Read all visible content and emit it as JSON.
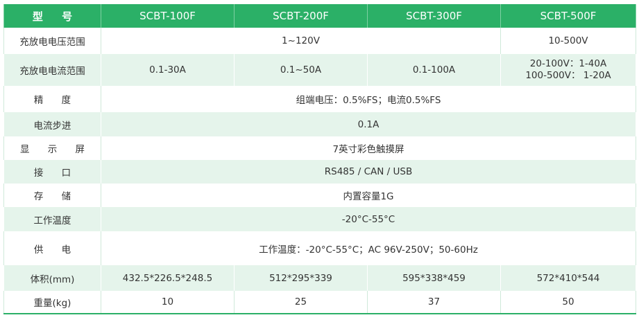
{
  "table": {
    "header": [
      "型 号",
      "SCBT-100F",
      "SCBT-200F",
      "SCBT-300F",
      "SCBT-500F"
    ],
    "rows": [
      {
        "label": "充放电电压范围",
        "cells": [
          "1~120V",
          "10-500V"
        ]
      },
      {
        "label": "充放电电流范围",
        "cells": [
          "0.1-30A",
          "0.1~50A",
          "0.1-100A",
          [
            "20-100V：1-40A",
            "100-500V： 1-20A"
          ]
        ]
      },
      {
        "label": "精 度",
        "cells": [
          "组端电压：0.5%FS；电流0.5%FS"
        ]
      },
      {
        "label": "电流步进",
        "cells": [
          "0.1A"
        ]
      },
      {
        "label": "显 示 屏",
        "cells": [
          "7英寸彩色触摸屏"
        ]
      },
      {
        "label": "接 口",
        "cells": [
          "RS485 / CAN / USB"
        ]
      },
      {
        "label": "存 储",
        "cells": [
          "内置容量1G"
        ]
      },
      {
        "label": "工作温度",
        "cells": [
          "-20°C-55°C"
        ]
      },
      {
        "label": "供 电",
        "cells": [
          "工作温度：-20°C-55°C；AC 96V-250V；50-60Hz"
        ]
      },
      {
        "label": "体积(mm)",
        "cells": [
          "432.5*226.5*248.5",
          "512*295*339",
          "595*338*459",
          "572*410*544"
        ]
      },
      {
        "label": "重量(kg)",
        "cells": [
          "10",
          "25",
          "37",
          "50"
        ]
      }
    ]
  }
}
